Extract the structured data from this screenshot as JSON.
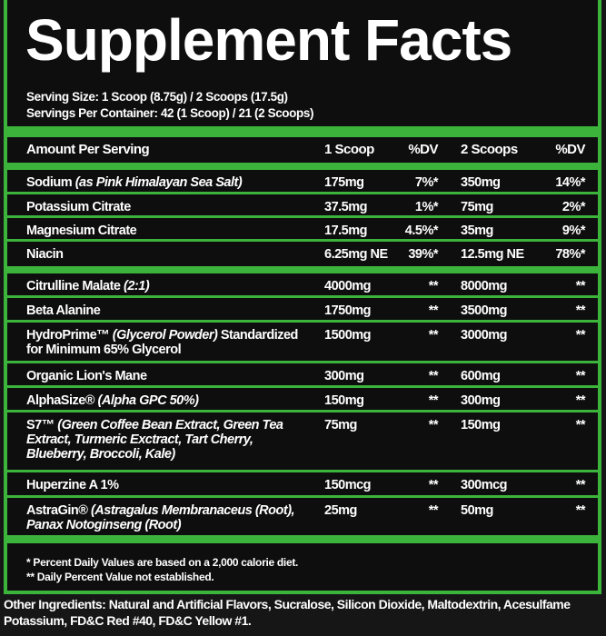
{
  "title": "Supplement Facts",
  "serving_size": "Serving Size: 1 Scoop (8.75g) / 2 Scoops (17.5g)",
  "servings_per_container": "Servings Per Container: 42 (1 Scoop) / 21 (2 Scoops)",
  "header": {
    "name": "Amount Per Serving",
    "scoop1": "1 Scoop",
    "dv1": "%DV",
    "scoop2": "2 Scoops",
    "dv2": "%DV"
  },
  "section1": [
    {
      "name": "Sodium ",
      "note": "(as Pink Himalayan Sea Salt)",
      "s1": "175mg",
      "d1": "7%*",
      "s2": "350mg",
      "d2": "14%*"
    },
    {
      "name": "Potassium Citrate",
      "note": "",
      "s1": "37.5mg",
      "d1": "1%*",
      "s2": "75mg",
      "d2": "2%*"
    },
    {
      "name": "Magnesium Citrate",
      "note": "",
      "s1": "17.5mg",
      "d1": "4.5%*",
      "s2": "35mg",
      "d2": "9%*"
    },
    {
      "name": "Niacin",
      "note": "",
      "s1": "6.25mg NE",
      "d1": "39%*",
      "s2": "12.5mg NE",
      "d2": "78%*"
    }
  ],
  "section2": [
    {
      "name": "Citrulline Malate ",
      "note": "(2:1)",
      "after": "",
      "s1": "4000mg",
      "d1": "**",
      "s2": "8000mg",
      "d2": "**"
    },
    {
      "name": "Beta Alanine",
      "note": "",
      "after": "",
      "s1": "1750mg",
      "d1": "**",
      "s2": "3500mg",
      "d2": "**"
    },
    {
      "name": "HydroPrime™ ",
      "note": "(Glycerol Powder)",
      "after": " Standardized for Minimum 65% Glycerol",
      "s1": "1500mg",
      "d1": "**",
      "s2": "3000mg",
      "d2": "**"
    },
    {
      "name": "Organic Lion's Mane",
      "note": "",
      "after": "",
      "s1": "300mg",
      "d1": "**",
      "s2": "600mg",
      "d2": "**"
    },
    {
      "name": "AlphaSize® ",
      "note": "(Alpha GPC 50%)",
      "after": "",
      "s1": "150mg",
      "d1": "**",
      "s2": "300mg",
      "d2": "**"
    },
    {
      "name": "S7™ ",
      "note": "(Green Coffee Bean Extract, Green Tea Extract, Turmeric Exctract, Tart Cherry, Blueberry, Broccoli, Kale)",
      "after": "",
      "s1": "75mg",
      "d1": "**",
      "s2": "150mg",
      "d2": "**"
    },
    {
      "name": "Huperzine A 1%",
      "note": "",
      "after": "",
      "s1": "150mcg",
      "d1": "**",
      "s2": "300mcg",
      "d2": "**"
    },
    {
      "name": "AstraGin® ",
      "note": "(Astragalus Membranaceus (Root), Panax Notoginseng (Root)",
      "after": "",
      "s1": "25mg",
      "d1": "**",
      "s2": "50mg",
      "d2": "**"
    }
  ],
  "footnotes": [
    "* Percent Daily Values are based on a 2,000 calorie diet.",
    "** Daily Percent Value not established."
  ],
  "other_ingredients": "Other Ingredients: Natural and Artificial Flavors, Sucralose, Silicon Dioxide, Maltodextrin, Acesulfame Potassium, FD&C Red #40, FD&C Yellow #1.",
  "colors": {
    "accent": "#3cb43c",
    "panel": "#0e0e0e",
    "text": "#ffffff"
  }
}
